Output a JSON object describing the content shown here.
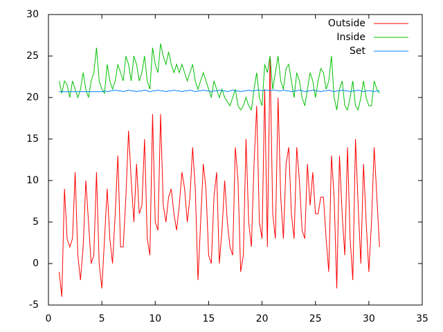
{
  "chart_data": {
    "type": "line",
    "x": [
      1,
      1.25,
      1.5,
      1.75,
      2,
      2.25,
      2.5,
      2.75,
      3,
      3.25,
      3.5,
      3.75,
      4,
      4.25,
      4.5,
      4.75,
      5,
      5.25,
      5.5,
      5.75,
      6,
      6.25,
      6.5,
      6.75,
      7,
      7.25,
      7.5,
      7.75,
      8,
      8.25,
      8.5,
      8.75,
      9,
      9.25,
      9.5,
      9.75,
      10,
      10.25,
      10.5,
      10.75,
      11,
      11.25,
      11.5,
      11.75,
      12,
      12.25,
      12.5,
      12.75,
      13,
      13.25,
      13.5,
      13.75,
      14,
      14.25,
      14.5,
      14.75,
      15,
      15.25,
      15.5,
      15.75,
      16,
      16.25,
      16.5,
      16.75,
      17,
      17.25,
      17.5,
      17.75,
      18,
      18.25,
      18.5,
      18.75,
      19,
      19.25,
      19.5,
      19.75,
      20,
      20.25,
      20.5,
      20.75,
      21,
      21.25,
      21.5,
      21.75,
      22,
      22.25,
      22.5,
      22.75,
      23,
      23.25,
      23.5,
      23.75,
      24,
      24.25,
      24.5,
      24.75,
      25,
      25.25,
      25.5,
      25.75,
      26,
      26.25,
      26.5,
      26.75,
      27,
      27.25,
      27.5,
      27.75,
      28,
      28.25,
      28.5,
      28.75,
      29,
      29.25,
      29.5,
      29.75,
      30,
      30.25,
      30.5,
      30.75,
      31
    ],
    "series": [
      {
        "name": "Outside",
        "color": "#ff0000",
        "values": [
          -1,
          -4,
          9,
          3,
          2,
          3,
          11,
          1,
          -2,
          2,
          10,
          5,
          0,
          1,
          11,
          0,
          -3,
          3,
          9,
          3,
          0,
          6,
          13,
          2,
          2,
          8,
          16,
          10,
          5,
          12,
          6,
          7,
          15,
          3,
          1,
          18,
          5,
          4,
          18,
          7,
          5,
          8,
          9,
          6,
          4,
          7,
          11,
          9,
          5,
          8,
          14,
          9,
          -2,
          5,
          12,
          9,
          1,
          0,
          8,
          11,
          0,
          4,
          10,
          5,
          2,
          1,
          14,
          10,
          -1,
          1,
          15,
          5,
          2,
          12,
          19,
          5,
          3,
          21,
          2,
          25,
          6,
          3,
          20,
          8,
          3,
          12,
          14,
          6,
          3,
          14,
          10,
          4,
          3,
          12,
          7,
          11,
          6,
          6,
          8,
          8,
          3,
          -1,
          13,
          8,
          -3,
          13,
          6,
          1,
          14,
          3,
          -2,
          15,
          7,
          0,
          12,
          5,
          -1,
          5,
          14,
          8,
          2
        ]
      },
      {
        "name": "Inside",
        "color": "#00c000",
        "values": [
          22,
          20.5,
          22,
          21.5,
          20,
          22,
          21,
          20,
          21,
          23,
          21,
          20,
          22,
          23,
          26,
          22,
          21,
          20.5,
          24,
          22,
          21,
          22,
          24,
          23,
          22,
          25,
          24,
          22,
          25,
          24,
          22,
          23,
          25,
          22,
          21,
          26,
          24,
          23,
          26.5,
          25,
          24,
          25.5,
          24,
          23,
          24,
          23,
          24,
          23,
          22,
          23,
          24,
          22,
          21,
          22,
          23,
          22,
          21,
          20,
          22,
          21,
          20,
          21,
          20,
          19.5,
          19,
          20,
          21,
          19,
          18.5,
          19,
          20,
          19,
          18.5,
          21,
          23,
          20,
          19,
          24,
          23,
          25,
          21,
          23,
          25,
          22,
          21,
          23.5,
          24,
          22,
          20,
          23,
          22,
          20,
          19,
          21,
          23,
          22,
          20,
          22,
          23.5,
          23,
          21,
          22,
          25,
          20,
          18.5,
          21,
          22,
          19,
          18.5,
          20,
          22,
          19,
          18.5,
          20,
          22,
          20,
          19,
          19,
          22,
          21,
          20.5
        ]
      },
      {
        "name": "Set",
        "color": "#0080ff",
        "values": [
          20.7,
          20.7,
          20.7,
          20.7,
          20.7,
          20.7,
          20.7,
          20.7,
          20.7,
          20.7,
          20.7,
          20.7,
          20.7,
          20.7,
          20.7,
          20.7,
          20.7,
          20.8,
          20.7,
          20.8,
          20.8,
          20.9,
          20.8,
          20.8,
          20.7,
          20.8,
          20.9,
          20.8,
          20.8,
          20.7,
          20.8,
          20.8,
          20.9,
          20.8,
          20.7,
          20.8,
          20.8,
          20.9,
          20.8,
          20.8,
          20.7,
          20.8,
          20.8,
          20.9,
          20.8,
          20.8,
          20.7,
          20.8,
          20.8,
          20.9,
          20.8,
          20.7,
          20.8,
          20.8,
          20.9,
          20.8,
          20.8,
          20.7,
          20.8,
          20.8,
          20.9,
          20.8,
          20.8,
          20.7,
          20.8,
          20.9,
          20.8,
          20.8,
          20.7,
          20.8,
          20.8,
          20.9,
          20.8,
          20.8,
          20.9,
          20.9,
          20.8,
          20.9,
          20.9,
          20.8,
          20.9,
          20.9,
          20.8,
          20.8,
          20.9,
          20.8,
          20.8,
          20.7,
          20.8,
          20.8,
          20.9,
          20.8,
          20.7,
          20.8,
          20.8,
          20.9,
          20.8,
          20.8,
          20.7,
          20.8,
          20.8,
          20.9,
          20.8,
          20.7,
          20.8,
          20.8,
          20.9,
          20.8,
          20.8,
          20.7,
          20.8,
          20.8,
          20.9,
          20.8,
          20.7,
          20.8,
          20.8,
          20.8,
          20.7,
          20.8,
          20.8
        ]
      }
    ],
    "xlim": [
      0,
      35
    ],
    "xticks": [
      0,
      5,
      10,
      15,
      20,
      25,
      30,
      35
    ],
    "ylim": [
      -5,
      30
    ],
    "yticks": [
      -5,
      0,
      5,
      10,
      15,
      20,
      25,
      30
    ],
    "legend": "top right"
  }
}
